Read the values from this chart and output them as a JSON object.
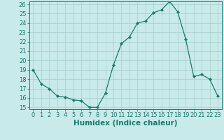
{
  "xlabel": "Humidex (Indice chaleur)",
  "x": [
    0,
    1,
    2,
    3,
    4,
    5,
    6,
    7,
    8,
    9,
    10,
    11,
    12,
    13,
    14,
    15,
    16,
    17,
    18,
    19,
    20,
    21,
    22,
    23
  ],
  "y": [
    19,
    17.5,
    17,
    16.2,
    16.1,
    15.8,
    15.7,
    15.0,
    15.0,
    16.5,
    19.5,
    21.8,
    22.5,
    24.0,
    24.2,
    25.1,
    25.4,
    26.3,
    25.2,
    22.3,
    18.3,
    18.5,
    18.0,
    16.2
  ],
  "line_color": "#1a7a6e",
  "marker": "D",
  "marker_size": 2.0,
  "bg_color": "#c8eaea",
  "grid_color": "#a8cece",
  "ylim": [
    15,
    26
  ],
  "yticks": [
    15,
    16,
    17,
    18,
    19,
    20,
    21,
    22,
    23,
    24,
    25,
    26
  ],
  "xticks": [
    0,
    1,
    2,
    3,
    4,
    5,
    6,
    7,
    8,
    9,
    10,
    11,
    12,
    13,
    14,
    15,
    16,
    17,
    18,
    19,
    20,
    21,
    22,
    23
  ],
  "tick_color": "#1a7a6e",
  "axis_color": "#1a7a6e",
  "xlabel_fontsize": 7.5,
  "tick_fontsize": 6.0
}
